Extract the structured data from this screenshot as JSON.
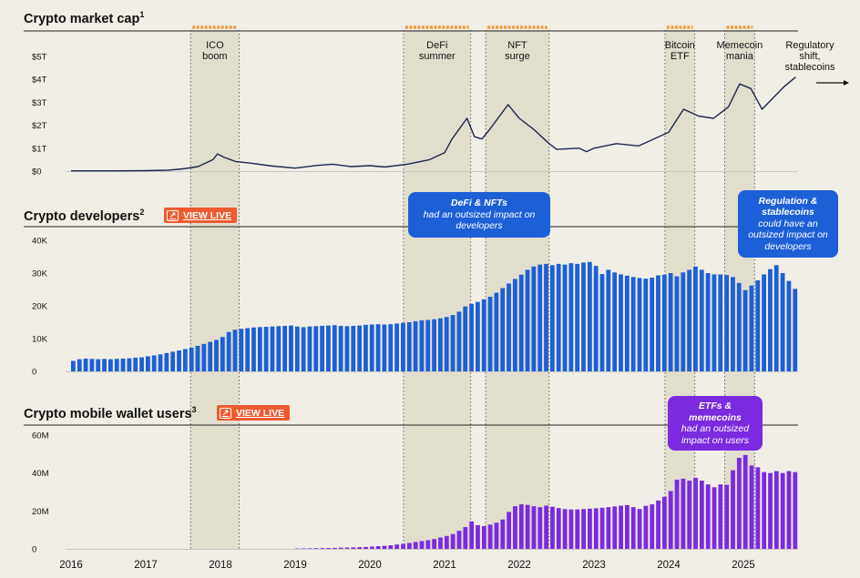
{
  "colors": {
    "band": "#dcd8c6",
    "band_marker": "#e9a03e",
    "line": "#1a2750",
    "dev_bars": "#1d5fd6",
    "wallet_bars": "#7a2be0",
    "callout_blue": "#1d5fd6",
    "callout_purple": "#7a2be0",
    "view_live": "#ef5a30"
  },
  "x_axis": {
    "ticks": [
      "2016",
      "2017",
      "2018",
      "2019",
      "2020",
      "2021",
      "2022",
      "2023",
      "2024",
      "2025"
    ]
  },
  "events": [
    {
      "label": "ICO\nboom",
      "start": 2017.6,
      "end": 2018.25
    },
    {
      "label": "DeFi\nsummer",
      "start": 2020.45,
      "end": 2021.35
    },
    {
      "label": "NFT\nsurge",
      "start": 2021.55,
      "end": 2022.4
    },
    {
      "label": "Bitcoin\nETF",
      "start": 2023.95,
      "end": 2024.35
    },
    {
      "label": "Memecoin\nmania",
      "start": 2024.75,
      "end": 2025.15
    },
    {
      "label": "Regulatory\nshift,\nstablecoins",
      "start": null,
      "end": null
    }
  ],
  "panels": {
    "market_cap": {
      "title": "Crypto market cap",
      "sup": "1",
      "yticks": [
        "$0",
        "$1T",
        "$2T",
        "$3T",
        "$4T",
        "$5T"
      ]
    },
    "developers": {
      "title": "Crypto developers",
      "sup": "2",
      "view_live": "VIEW LIVE",
      "yticks": [
        "0",
        "10K",
        "20K",
        "30K",
        "40K"
      ]
    },
    "wallets": {
      "title": "Crypto mobile wallet users",
      "sup": "3",
      "view_live": "VIEW LIVE",
      "yticks": [
        "0",
        "20M",
        "40M",
        "60M"
      ]
    }
  },
  "callouts": {
    "defi_nfts": {
      "bold": "DeFi & NFTs",
      "rest": "had an outsized impact on developers"
    },
    "regulation": {
      "bold": "Regulation & stablecoins",
      "rest": "could have an outsized impact on developers"
    },
    "etfs": {
      "bold": "ETFs & memecoins",
      "rest": "had an outsized impact on users"
    }
  },
  "chart_data": [
    {
      "type": "line",
      "title": "Crypto market cap",
      "ylabel": "",
      "ylim": [
        0,
        5
      ],
      "y_unit": "T",
      "x": [
        2016.0,
        2016.5,
        2017.0,
        2017.3,
        2017.5,
        2017.7,
        2017.9,
        2017.96,
        2018.05,
        2018.2,
        2018.4,
        2018.7,
        2019.0,
        2019.3,
        2019.5,
        2019.75,
        2020.0,
        2020.2,
        2020.5,
        2020.8,
        2021.0,
        2021.1,
        2021.3,
        2021.4,
        2021.5,
        2021.6,
        2021.85,
        2022.0,
        2022.2,
        2022.4,
        2022.5,
        2022.8,
        2022.9,
        2023.0,
        2023.3,
        2023.6,
        2023.8,
        2024.0,
        2024.2,
        2024.4,
        2024.6,
        2024.8,
        2024.95,
        2025.1,
        2025.25,
        2025.4,
        2025.55,
        2025.7
      ],
      "values": [
        0.01,
        0.01,
        0.02,
        0.04,
        0.1,
        0.2,
        0.5,
        0.75,
        0.6,
        0.42,
        0.35,
        0.22,
        0.13,
        0.25,
        0.3,
        0.2,
        0.24,
        0.18,
        0.3,
        0.5,
        0.8,
        1.4,
        2.3,
        1.5,
        1.4,
        1.8,
        2.9,
        2.3,
        1.8,
        1.2,
        0.95,
        1.0,
        0.85,
        1.0,
        1.2,
        1.1,
        1.4,
        1.7,
        2.7,
        2.4,
        2.3,
        2.8,
        3.8,
        3.6,
        2.7,
        3.2,
        3.7,
        4.1
      ]
    },
    {
      "type": "bar",
      "title": "Crypto developers",
      "ylim": [
        0,
        40000
      ],
      "x_start": 2016.0,
      "x_step": 0.0833,
      "values": [
        3200,
        3700,
        3900,
        3800,
        3700,
        3800,
        3700,
        3800,
        3900,
        4000,
        4200,
        4300,
        4600,
        4900,
        5200,
        5600,
        6000,
        6400,
        6800,
        7200,
        7800,
        8400,
        9000,
        9600,
        10500,
        12000,
        12700,
        13000,
        13200,
        13400,
        13500,
        13600,
        13700,
        13800,
        13900,
        14000,
        13700,
        13500,
        13700,
        13800,
        13900,
        14000,
        14100,
        13900,
        13800,
        13900,
        14000,
        14200,
        14300,
        14400,
        14300,
        14400,
        14600,
        14800,
        15000,
        15300,
        15600,
        15700,
        15900,
        16200,
        16600,
        17200,
        18200,
        19800,
        20600,
        21200,
        22000,
        22800,
        24000,
        25400,
        26800,
        28200,
        29500,
        31000,
        32000,
        32600,
        32800,
        32400,
        32800,
        32600,
        33000,
        32800,
        33200,
        33400,
        32200,
        29700,
        31000,
        30200,
        29600,
        29200,
        28800,
        28500,
        28300,
        28600,
        29300,
        29500,
        30000,
        29000,
        30200,
        31000,
        32000,
        31000,
        30000,
        29600,
        29600,
        29400,
        28800,
        27000,
        24800,
        26200,
        27800,
        29600,
        31200,
        32400,
        30000,
        27600,
        25200
      ]
    },
    {
      "type": "bar",
      "title": "Crypto mobile wallet users",
      "ylim": [
        0,
        60000000
      ],
      "x_start": 2019.0,
      "x_step": 0.0833,
      "values": [
        200000,
        250000,
        300000,
        350000,
        400000,
        450000,
        500000,
        600000,
        700000,
        800000,
        900000,
        1000000,
        1200000,
        1400000,
        1600000,
        1900000,
        2300000,
        2700000,
        3100000,
        3600000,
        4100000,
        4600000,
        5200000,
        6000000,
        6800000,
        7800000,
        9500000,
        11500000,
        14500000,
        12500000,
        12000000,
        12800000,
        13800000,
        15500000,
        19500000,
        22500000,
        23500000,
        23200000,
        22500000,
        22000000,
        22800000,
        22200000,
        21500000,
        21000000,
        20800000,
        20800000,
        21000000,
        21200000,
        21400000,
        21700000,
        22000000,
        22400000,
        22800000,
        23100000,
        22000000,
        21000000,
        22700000,
        23500000,
        25500000,
        27500000,
        30500000,
        36500000,
        37000000,
        36000000,
        37500000,
        36000000,
        34000000,
        32500000,
        34000000,
        33800000,
        41500000,
        48000000,
        49500000,
        44000000,
        43000000,
        40500000,
        40000000,
        41000000,
        40000000,
        41000000,
        40500000,
        40500000
      ]
    }
  ]
}
